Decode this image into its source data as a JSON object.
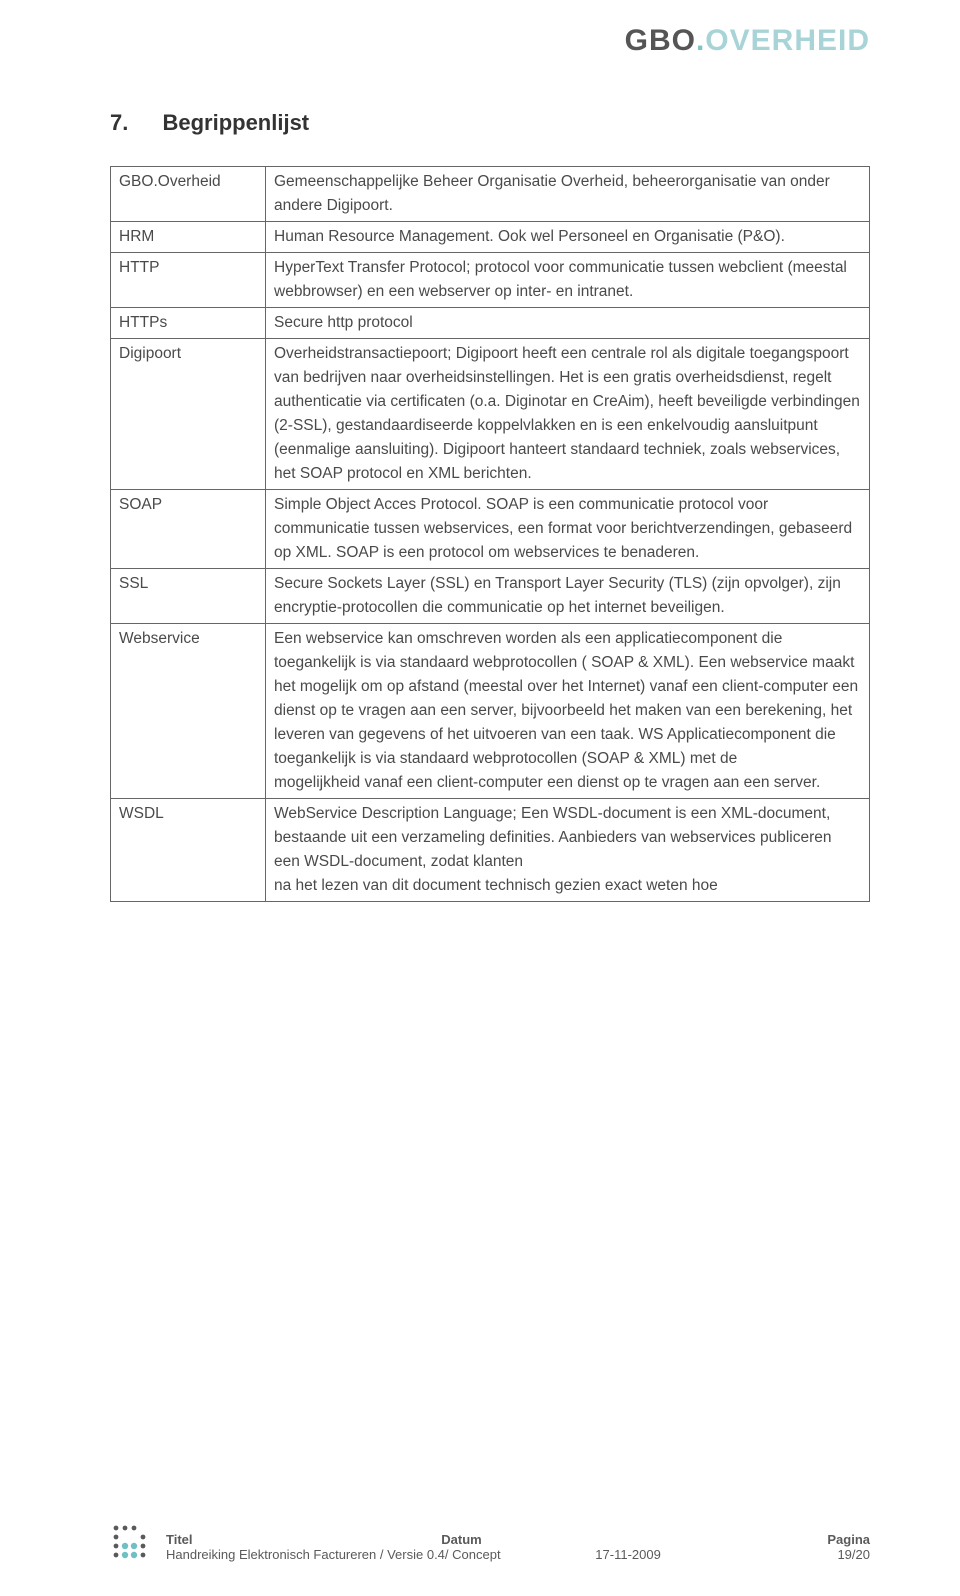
{
  "brand": {
    "gbo": "GBO",
    "dot": ".",
    "overheid": "OVERHEID"
  },
  "heading": {
    "number": "7.",
    "title": "Begrippenlijst"
  },
  "glossary": [
    {
      "term": "GBO.Overheid",
      "def": "Gemeenschappelijke Beheer Organisatie Overheid, beheerorganisatie van onder andere Digipoort."
    },
    {
      "term": "HRM",
      "def": "Human Resource Management. Ook wel Personeel en Organisatie (P&O)."
    },
    {
      "term": "HTTP",
      "def": "HyperText Transfer Protocol; protocol voor communicatie tussen webclient (meestal webbrowser) en een webserver op inter- en intranet."
    },
    {
      "term": "HTTPs",
      "def": "Secure http protocol"
    },
    {
      "term": "Digipoort",
      "def": "Overheidstransactiepoort; Digipoort heeft een centrale rol als digitale toegangspoort van bedrijven naar overheidsinstellingen. Het is een gratis overheidsdienst, regelt authenticatie via certificaten (o.a. Diginotar en CreAim), heeft beveiligde verbindingen (2-SSL), gestandaardiseerde koppelvlakken en is een enkelvoudig aansluitpunt (eenmalige aansluiting). Digipoort hanteert standaard techniek, zoals webservices, het SOAP protocol en XML berichten."
    },
    {
      "term": "SOAP",
      "def": "Simple Object Acces Protocol. SOAP is een communicatie protocol voor communicatie tussen webservices, een format voor berichtverzendingen, gebaseerd op XML. SOAP is een protocol om webservices te benaderen."
    },
    {
      "term": "SSL",
      "def": "Secure Sockets Layer (SSL) en Transport Layer Security (TLS) (zijn opvolger), zijn encryptie-protocollen die communicatie op het internet beveiligen."
    },
    {
      "term": "Webservice",
      "def": "Een webservice kan omschreven worden als een applicatiecomponent die toegankelijk is via standaard webprotocollen ( SOAP & XML). Een webservice maakt het mogelijk om op afstand (meestal over het Internet) vanaf een client-computer een dienst op te vragen aan een server, bijvoorbeeld het maken van een berekening, het leveren van gegevens of het uitvoeren van een taak. WS Applicatiecomponent die toegankelijk is via standaard webprotocollen (SOAP & XML) met de\nmogelijkheid vanaf een client-computer een dienst op te vragen aan een server."
    },
    {
      "term": "WSDL",
      "def": "WebService Description Language; Een WSDL-document is een XML-document, bestaande uit een verzameling definities. Aanbieders van webservices publiceren een WSDL-document, zodat klanten\nna het lezen van dit document technisch gezien exact weten hoe"
    }
  ],
  "footer": {
    "labels": {
      "titel": "Titel",
      "datum": "Datum",
      "pagina": "Pagina"
    },
    "doc_title": "Handreiking Elektronisch Factureren / Versie 0.4/ Concept",
    "date": "17-11-2009",
    "page": "19/20"
  },
  "colors": {
    "text": "#4a4a4a",
    "border": "#666666",
    "brand_dark": "#555555",
    "brand_accent": "#7fc4c9",
    "brand_light": "#a8d4d7",
    "logo_dark": "#5a5a5a",
    "logo_blue": "#6ec0c6"
  }
}
